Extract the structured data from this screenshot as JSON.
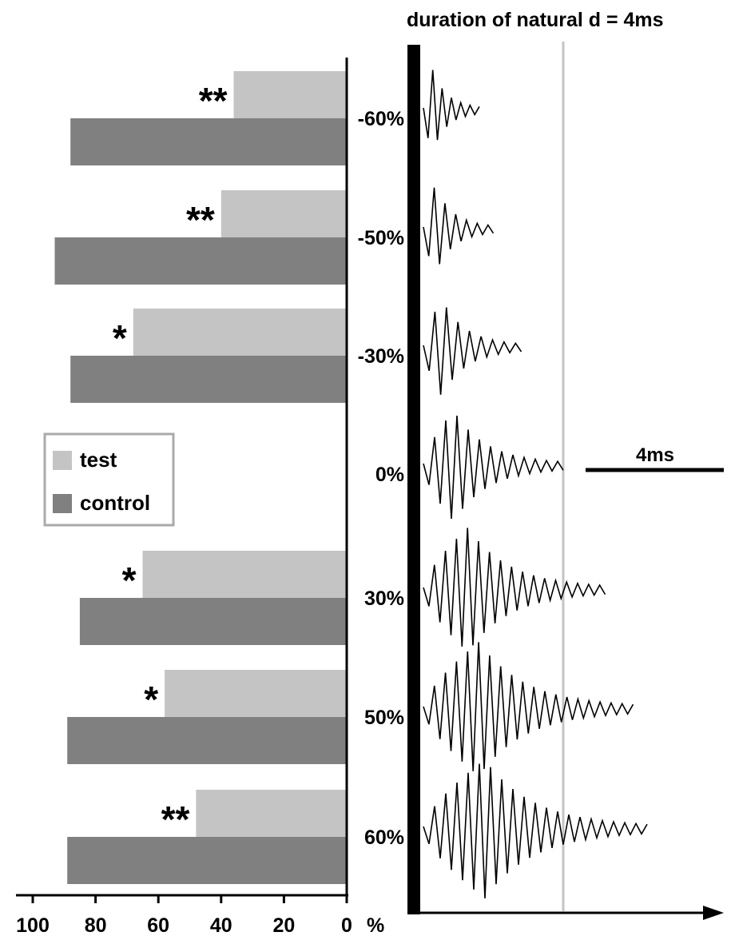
{
  "chart_data": {
    "type": "bar",
    "orientation": "horizontal",
    "x_axis": {
      "reversed": true,
      "range": [
        0,
        100
      ],
      "ticks": [
        100,
        80,
        60,
        40,
        20,
        0
      ],
      "unit_label": "%"
    },
    "categories": [
      "-60%",
      "-50%",
      "-30%",
      "0%",
      "30%",
      "50%",
      "60%"
    ],
    "series": [
      {
        "name": "test",
        "values": [
          36,
          40,
          68,
          null,
          65,
          58,
          48
        ]
      },
      {
        "name": "control",
        "values": [
          88,
          93,
          88,
          null,
          85,
          89,
          89
        ]
      }
    ],
    "significance": [
      "**",
      "**",
      "*",
      "",
      "*",
      "*",
      "**"
    ],
    "legend": {
      "placement": "center-left",
      "items": [
        "test",
        "control"
      ]
    },
    "waveform_panel": {
      "title": "duration of natural d = 4ms",
      "scale_bar_label": "4ms",
      "duration_changes_percent": [
        -60,
        -50,
        -30,
        0,
        30,
        50,
        60
      ],
      "natural_duration_ms": 4
    },
    "colors": {
      "test": "#c4c4c4",
      "control": "#808080",
      "reference_line": "#c4c4c4",
      "axis": "#000000"
    }
  }
}
